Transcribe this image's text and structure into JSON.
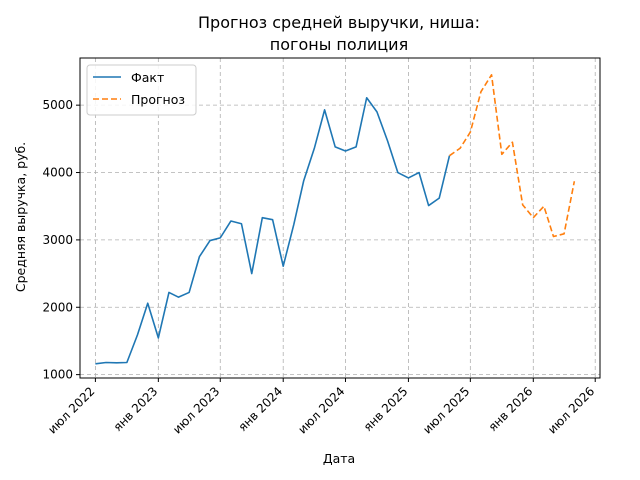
{
  "chart_data": {
    "type": "line",
    "title_lines": [
      "Прогноз средней выручки, ниша:",
      "погоны полиция"
    ],
    "xlabel": "Дата",
    "ylabel": "Средняя выручка, руб.",
    "xlim": [
      "2022-05-17",
      "2026-07-15"
    ],
    "ylim": [
      950,
      5700
    ],
    "yticks": [
      1000,
      2000,
      3000,
      4000,
      5000
    ],
    "xticks": [
      {
        "date": "2022-07-01",
        "label": "июл 2022"
      },
      {
        "date": "2023-01-01",
        "label": "янв 2023"
      },
      {
        "date": "2023-07-01",
        "label": "июл 2023"
      },
      {
        "date": "2024-01-01",
        "label": "янв 2024"
      },
      {
        "date": "2024-07-01",
        "label": "июл 2024"
      },
      {
        "date": "2025-01-01",
        "label": "янв 2025"
      },
      {
        "date": "2025-07-01",
        "label": "июл 2025"
      },
      {
        "date": "2026-01-01",
        "label": "янв 2026"
      },
      {
        "date": "2026-07-01",
        "label": "июл 2026"
      }
    ],
    "grid": true,
    "legend_position": "upper-left",
    "series": [
      {
        "name": "Факт",
        "color": "#1f77b4",
        "style": "solid",
        "points": [
          [
            "2022-07-01",
            1160
          ],
          [
            "2022-08-01",
            1180
          ],
          [
            "2022-09-01",
            1175
          ],
          [
            "2022-10-01",
            1180
          ],
          [
            "2022-11-01",
            1590
          ],
          [
            "2022-12-01",
            2060
          ],
          [
            "2023-01-01",
            1545
          ],
          [
            "2023-02-01",
            2220
          ],
          [
            "2023-03-01",
            2150
          ],
          [
            "2023-04-01",
            2220
          ],
          [
            "2023-05-01",
            2750
          ],
          [
            "2023-06-01",
            2990
          ],
          [
            "2023-07-01",
            3030
          ],
          [
            "2023-08-01",
            3280
          ],
          [
            "2023-09-01",
            3240
          ],
          [
            "2023-10-01",
            2500
          ],
          [
            "2023-11-01",
            3330
          ],
          [
            "2023-12-01",
            3300
          ],
          [
            "2024-01-01",
            2610
          ],
          [
            "2024-02-01",
            3230
          ],
          [
            "2024-03-01",
            3880
          ],
          [
            "2024-04-01",
            4360
          ],
          [
            "2024-05-01",
            4930
          ],
          [
            "2024-06-01",
            4380
          ],
          [
            "2024-07-01",
            4320
          ],
          [
            "2024-08-01",
            4380
          ],
          [
            "2024-09-01",
            5110
          ],
          [
            "2024-10-01",
            4900
          ],
          [
            "2024-11-01",
            4470
          ],
          [
            "2024-12-01",
            4000
          ],
          [
            "2025-01-01",
            3920
          ],
          [
            "2025-02-01",
            4000
          ],
          [
            "2025-03-01",
            3510
          ],
          [
            "2025-04-01",
            3620
          ],
          [
            "2025-05-01",
            4250
          ]
        ]
      },
      {
        "name": "Прогноз",
        "color": "#ff7f0e",
        "style": "dashed",
        "points": [
          [
            "2025-05-01",
            4250
          ],
          [
            "2025-06-01",
            4360
          ],
          [
            "2025-07-01",
            4600
          ],
          [
            "2025-08-01",
            5200
          ],
          [
            "2025-09-01",
            5450
          ],
          [
            "2025-10-01",
            4270
          ],
          [
            "2025-11-01",
            4450
          ],
          [
            "2025-12-01",
            3520
          ],
          [
            "2026-01-01",
            3330
          ],
          [
            "2026-02-01",
            3500
          ],
          [
            "2026-03-01",
            3050
          ],
          [
            "2026-04-01",
            3090
          ],
          [
            "2026-05-01",
            3870
          ]
        ]
      }
    ]
  }
}
